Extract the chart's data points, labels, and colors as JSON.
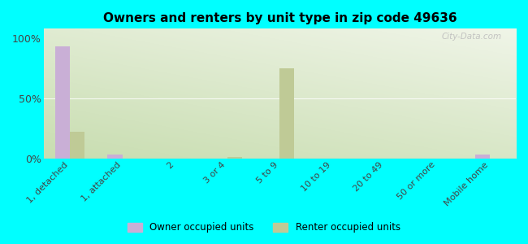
{
  "title": "Owners and renters by unit type in zip code 49636",
  "categories": [
    "1, detached",
    "1, attached",
    "2",
    "3 or 4",
    "5 to 9",
    "10 to 19",
    "20 to 49",
    "50 or more",
    "Mobile home"
  ],
  "owner_values": [
    93,
    3,
    0,
    0,
    0,
    0,
    0,
    0,
    3
  ],
  "renter_values": [
    22,
    0,
    0,
    1,
    75,
    0,
    0,
    0,
    0
  ],
  "owner_color": "#c9afd6",
  "renter_color": "#bfca96",
  "background_color": "#00ffff",
  "plot_bg_top_left": "#c8ddb0",
  "plot_bg_bottom_right": "#f0f5e8",
  "yticks": [
    0,
    50,
    100
  ],
  "ylim": [
    0,
    108
  ],
  "bar_width": 0.28,
  "legend_owner": "Owner occupied units",
  "legend_renter": "Renter occupied units",
  "watermark": "City-Data.com"
}
